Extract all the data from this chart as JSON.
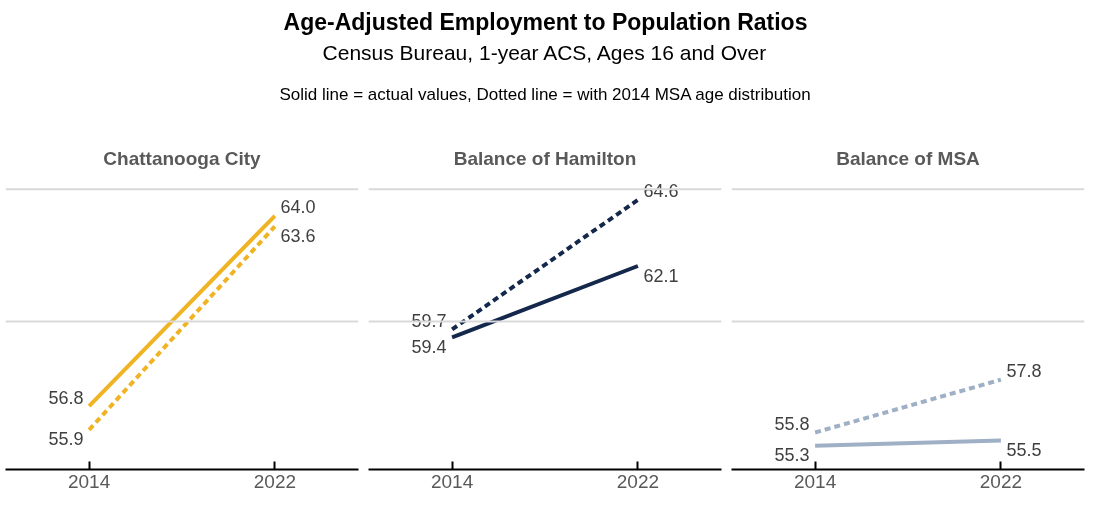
{
  "chart_data": [
    {
      "type": "other",
      "title": "Age-Adjusted Employment to Population Ratios",
      "subtitle": "Census Bureau, 1-year ACS, Ages 16 and Over",
      "annotations": [
        "Solid line = actual values, Dotted line = with 2014 MSA age distribution"
      ]
    },
    {
      "type": "line",
      "title": "Chattanooga City",
      "categories": [
        "2014",
        "2022"
      ],
      "tick_labels": "x",
      "marker": "none",
      "ref_lines": [
        {
          "axis": "y",
          "value": 60,
          "color": "#d9d9d9"
        },
        {
          "axis": "y",
          "value": 65,
          "color": "#d9d9d9"
        }
      ],
      "series": [
        {
          "color": "#f0b323",
          "line_style": "solid",
          "values": [
            56.8,
            64.0
          ],
          "value_labels": [
            "56.8",
            "64.0"
          ]
        },
        {
          "color": "#f0b323",
          "line_style": "dashed",
          "values": [
            55.9,
            63.6
          ],
          "value_labels": [
            "55.9",
            "63.6"
          ]
        }
      ]
    },
    {
      "type": "line",
      "title": "Balance of Hamilton",
      "categories": [
        "2014",
        "2022"
      ],
      "tick_labels": "x",
      "marker": "none",
      "ref_lines": [
        {
          "axis": "y",
          "value": 60,
          "color": "#d9d9d9"
        },
        {
          "axis": "y",
          "value": 65,
          "color": "#d9d9d9"
        }
      ],
      "series": [
        {
          "color": "#14284b",
          "line_style": "solid",
          "values": [
            59.4,
            62.1
          ],
          "value_labels": [
            "59.4",
            "62.1"
          ]
        },
        {
          "color": "#14284b",
          "line_style": "dashed",
          "values": [
            59.7,
            64.6
          ],
          "value_labels": [
            "59.7",
            "64.6"
          ]
        }
      ]
    },
    {
      "type": "line",
      "title": "Balance of MSA",
      "categories": [
        "2014",
        "2022"
      ],
      "tick_labels": "x",
      "marker": "none",
      "ref_lines": [
        {
          "axis": "y",
          "value": 60,
          "color": "#d9d9d9"
        },
        {
          "axis": "y",
          "value": 65,
          "color": "#d9d9d9"
        }
      ],
      "series": [
        {
          "color": "#9fafc6",
          "line_style": "solid",
          "values": [
            55.3,
            55.5
          ],
          "value_labels": [
            "55.3",
            "55.5"
          ]
        },
        {
          "color": "#9fafc6",
          "line_style": "dashed",
          "values": [
            55.8,
            57.8
          ],
          "value_labels": [
            "55.8",
            "57.8"
          ]
        }
      ]
    }
  ]
}
